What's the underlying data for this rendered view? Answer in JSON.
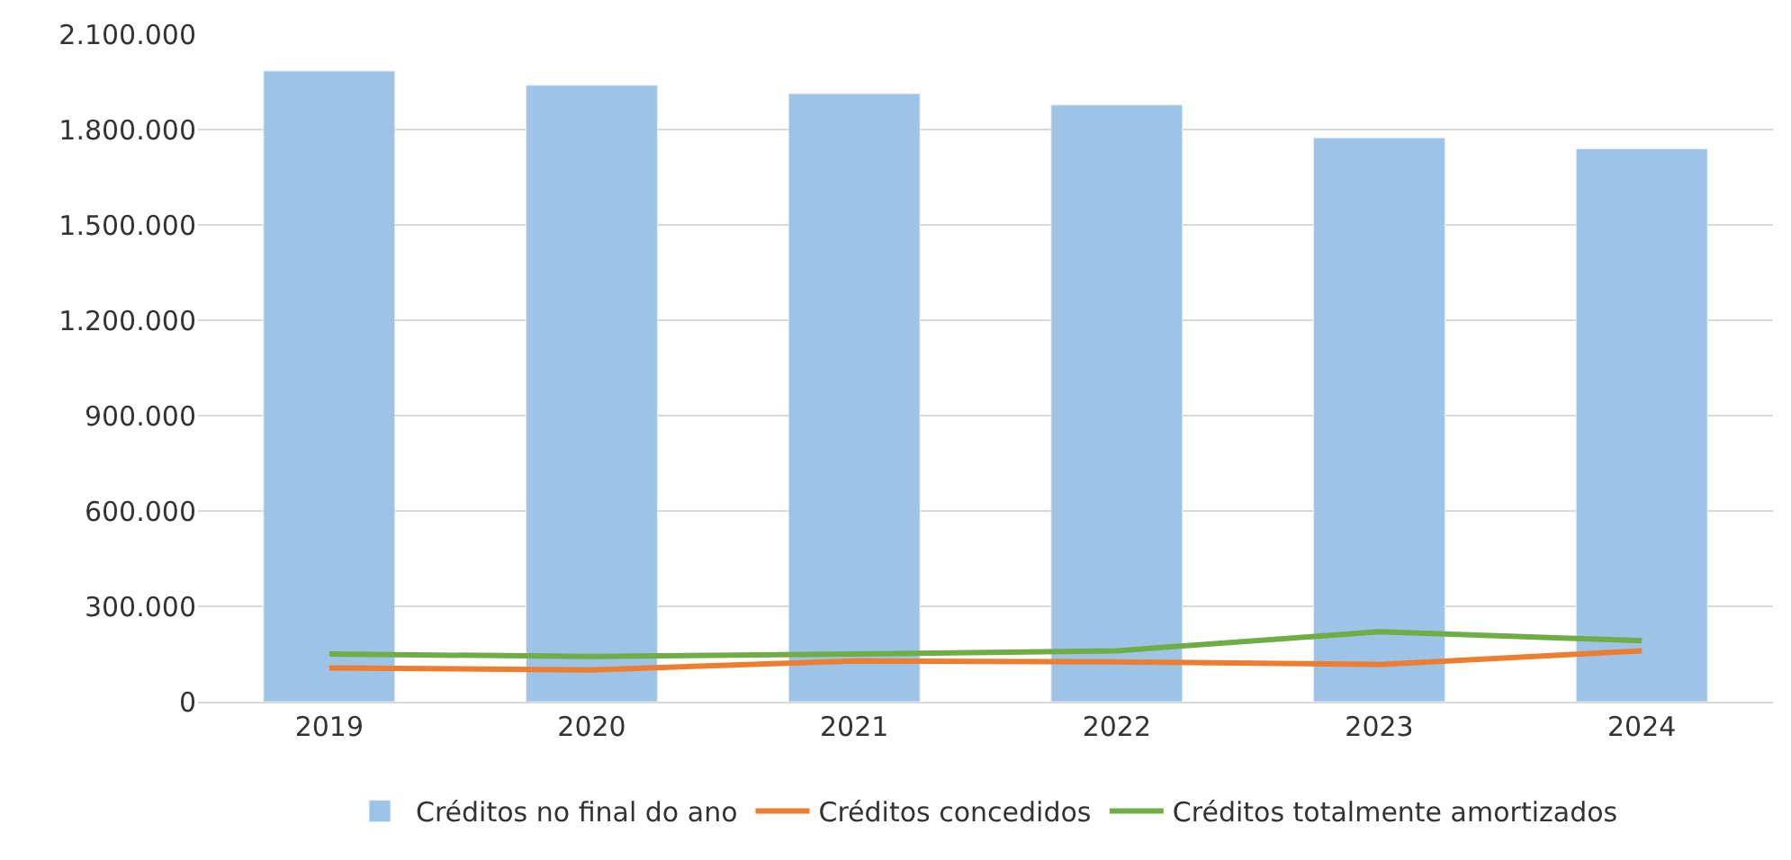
{
  "chart_data": {
    "type": "bar",
    "categories": [
      "2019",
      "2020",
      "2021",
      "2022",
      "2023",
      "2024"
    ],
    "series": [
      {
        "name": "Créditos no final do ano",
        "color": "#9dc3e6",
        "values": [
          1984000,
          1939000,
          1913000,
          1877000,
          1774000,
          1739000
        ]
      },
      {
        "name": "Créditos concedidos",
        "type": "line",
        "color": "#ed7d31",
        "values": [
          106000,
          100000,
          128000,
          125000,
          117000,
          160000
        ]
      },
      {
        "name": "Créditos totalmente amortizados",
        "type": "line",
        "color": "#70ad47",
        "values": [
          150000,
          142000,
          150000,
          160000,
          220000,
          192000
        ]
      }
    ],
    "ylim": [
      0,
      2100000
    ],
    "yticks": [
      {
        "value": 0,
        "label": "0"
      },
      {
        "value": 300000,
        "label": "300.000"
      },
      {
        "value": 600000,
        "label": "600.000"
      },
      {
        "value": 900000,
        "label": "900.000"
      },
      {
        "value": 1200000,
        "label": "1.200.000"
      },
      {
        "value": 1500000,
        "label": "1.500.000"
      },
      {
        "value": 1800000,
        "label": "1.800.000"
      },
      {
        "value": 2100000,
        "label": "2.100.000"
      }
    ],
    "grid": "y",
    "legend": "bottom",
    "marker": "none",
    "line_style": "solid"
  }
}
